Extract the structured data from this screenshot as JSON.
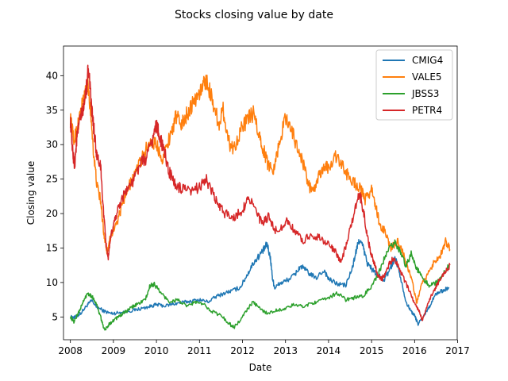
{
  "chart_data": {
    "type": "line",
    "title": "Stocks closing value by date",
    "xlabel": "Date",
    "ylabel": "Closing value",
    "xlim": [
      2007.84,
      2016.99
    ],
    "ylim": [
      1.7,
      44.3
    ],
    "x_ticks": [
      2008,
      2009,
      2010,
      2011,
      2012,
      2013,
      2014,
      2015,
      2016,
      2017
    ],
    "x_tick_labels": [
      "2008",
      "2009",
      "2010",
      "2011",
      "2012",
      "2013",
      "2014",
      "2015",
      "2016",
      "2017"
    ],
    "y_ticks": [
      5,
      10,
      15,
      20,
      25,
      30,
      35,
      40
    ],
    "y_tick_labels": [
      "5",
      "10",
      "15",
      "20",
      "25",
      "30",
      "35",
      "40"
    ],
    "grid": false,
    "legend_position": "top-right",
    "series": [
      {
        "name": "CMIG4",
        "color": "#1f77b4",
        "points": [
          [
            2008.0,
            5.0
          ],
          [
            2008.1,
            4.9
          ],
          [
            2008.25,
            5.6
          ],
          [
            2008.4,
            6.8
          ],
          [
            2008.5,
            7.4
          ],
          [
            2008.6,
            6.5
          ],
          [
            2008.8,
            5.8
          ],
          [
            2008.95,
            5.5
          ],
          [
            2009.1,
            5.6
          ],
          [
            2009.3,
            5.8
          ],
          [
            2009.5,
            6.0
          ],
          [
            2009.7,
            6.3
          ],
          [
            2009.9,
            6.6
          ],
          [
            2010.0,
            6.8
          ],
          [
            2010.2,
            6.6
          ],
          [
            2010.4,
            6.9
          ],
          [
            2010.6,
            7.1
          ],
          [
            2010.8,
            7.3
          ],
          [
            2011.0,
            7.5
          ],
          [
            2011.2,
            7.2
          ],
          [
            2011.4,
            8.0
          ],
          [
            2011.6,
            8.5
          ],
          [
            2011.8,
            8.9
          ],
          [
            2011.95,
            9.3
          ],
          [
            2012.1,
            11.0
          ],
          [
            2012.25,
            12.8
          ],
          [
            2012.4,
            14.0
          ],
          [
            2012.5,
            14.8
          ],
          [
            2012.57,
            15.6
          ],
          [
            2012.65,
            13.5
          ],
          [
            2012.7,
            10.5
          ],
          [
            2012.75,
            9.2
          ],
          [
            2012.85,
            9.8
          ],
          [
            2013.0,
            10.2
          ],
          [
            2013.2,
            11.0
          ],
          [
            2013.35,
            12.4
          ],
          [
            2013.5,
            11.6
          ],
          [
            2013.7,
            10.6
          ],
          [
            2013.9,
            11.8
          ],
          [
            2014.0,
            10.5
          ],
          [
            2014.2,
            9.8
          ],
          [
            2014.4,
            9.6
          ],
          [
            2014.55,
            12.0
          ],
          [
            2014.65,
            14.8
          ],
          [
            2014.72,
            16.2
          ],
          [
            2014.8,
            15.2
          ],
          [
            2014.9,
            12.8
          ],
          [
            2015.0,
            12.0
          ],
          [
            2015.15,
            11.0
          ],
          [
            2015.3,
            10.4
          ],
          [
            2015.45,
            12.2
          ],
          [
            2015.55,
            13.6
          ],
          [
            2015.65,
            11.5
          ],
          [
            2015.8,
            7.2
          ],
          [
            2015.9,
            6.0
          ],
          [
            2016.0,
            5.2
          ],
          [
            2016.08,
            4.0
          ],
          [
            2016.2,
            5.0
          ],
          [
            2016.35,
            6.6
          ],
          [
            2016.5,
            8.4
          ],
          [
            2016.65,
            8.8
          ],
          [
            2016.8,
            9.3
          ]
        ]
      },
      {
        "name": "VALE5",
        "color": "#ff7f0e",
        "points": [
          [
            2008.0,
            34.0
          ],
          [
            2008.08,
            30.5
          ],
          [
            2008.18,
            33.0
          ],
          [
            2008.3,
            36.5
          ],
          [
            2008.4,
            39.0
          ],
          [
            2008.48,
            34.0
          ],
          [
            2008.55,
            28.0
          ],
          [
            2008.62,
            24.0
          ],
          [
            2008.7,
            22.0
          ],
          [
            2008.78,
            17.0
          ],
          [
            2008.85,
            14.5
          ],
          [
            2008.95,
            17.0
          ],
          [
            2009.1,
            19.0
          ],
          [
            2009.25,
            22.0
          ],
          [
            2009.4,
            24.5
          ],
          [
            2009.55,
            26.5
          ],
          [
            2009.7,
            28.5
          ],
          [
            2009.85,
            30.5
          ],
          [
            2010.0,
            30.0
          ],
          [
            2010.15,
            28.0
          ],
          [
            2010.3,
            31.0
          ],
          [
            2010.45,
            34.0
          ],
          [
            2010.6,
            33.0
          ],
          [
            2010.75,
            35.0
          ],
          [
            2010.9,
            36.5
          ],
          [
            2011.05,
            38.0
          ],
          [
            2011.15,
            39.5
          ],
          [
            2011.3,
            36.5
          ],
          [
            2011.45,
            33.0
          ],
          [
            2011.55,
            35.0
          ],
          [
            2011.7,
            30.0
          ],
          [
            2011.8,
            29.5
          ],
          [
            2011.95,
            32.0
          ],
          [
            2012.1,
            33.5
          ],
          [
            2012.25,
            34.5
          ],
          [
            2012.4,
            31.0
          ],
          [
            2012.5,
            29.0
          ],
          [
            2012.6,
            27.0
          ],
          [
            2012.72,
            26.5
          ],
          [
            2012.85,
            30.0
          ],
          [
            2013.0,
            34.0
          ],
          [
            2013.1,
            33.0
          ],
          [
            2013.25,
            30.0
          ],
          [
            2013.4,
            27.5
          ],
          [
            2013.55,
            24.0
          ],
          [
            2013.65,
            23.0
          ],
          [
            2013.75,
            25.0
          ],
          [
            2013.9,
            27.0
          ],
          [
            2014.0,
            26.5
          ],
          [
            2014.15,
            28.5
          ],
          [
            2014.3,
            27.0
          ],
          [
            2014.45,
            25.5
          ],
          [
            2014.6,
            24.5
          ],
          [
            2014.75,
            23.5
          ],
          [
            2014.85,
            22.0
          ],
          [
            2015.0,
            23.5
          ],
          [
            2015.1,
            21.0
          ],
          [
            2015.2,
            18.0
          ],
          [
            2015.3,
            17.5
          ],
          [
            2015.45,
            15.0
          ],
          [
            2015.6,
            16.0
          ],
          [
            2015.72,
            14.5
          ],
          [
            2015.85,
            12.0
          ],
          [
            2015.95,
            10.0
          ],
          [
            2016.05,
            7.0
          ],
          [
            2016.15,
            9.5
          ],
          [
            2016.3,
            11.0
          ],
          [
            2016.45,
            13.0
          ],
          [
            2016.6,
            14.0
          ],
          [
            2016.72,
            16.0
          ],
          [
            2016.82,
            14.8
          ]
        ]
      },
      {
        "name": "JBSS3",
        "color": "#2ca02c",
        "points": [
          [
            2008.0,
            5.0
          ],
          [
            2008.08,
            4.3
          ],
          [
            2008.18,
            5.5
          ],
          [
            2008.3,
            7.2
          ],
          [
            2008.4,
            8.5
          ],
          [
            2008.5,
            8.0
          ],
          [
            2008.6,
            7.0
          ],
          [
            2008.7,
            5.0
          ],
          [
            2008.8,
            3.0
          ],
          [
            2008.9,
            4.0
          ],
          [
            2009.0,
            4.5
          ],
          [
            2009.15,
            5.2
          ],
          [
            2009.3,
            5.8
          ],
          [
            2009.45,
            6.5
          ],
          [
            2009.6,
            7.0
          ],
          [
            2009.75,
            7.6
          ],
          [
            2009.85,
            9.5
          ],
          [
            2009.95,
            9.8
          ],
          [
            2010.1,
            8.5
          ],
          [
            2010.3,
            7.2
          ],
          [
            2010.5,
            7.5
          ],
          [
            2010.7,
            6.5
          ],
          [
            2010.9,
            7.2
          ],
          [
            2011.1,
            6.8
          ],
          [
            2011.3,
            5.8
          ],
          [
            2011.5,
            5.2
          ],
          [
            2011.7,
            4.0
          ],
          [
            2011.8,
            3.5
          ],
          [
            2011.95,
            4.5
          ],
          [
            2012.1,
            6.0
          ],
          [
            2012.25,
            7.2
          ],
          [
            2012.4,
            6.2
          ],
          [
            2012.6,
            5.5
          ],
          [
            2012.8,
            6.0
          ],
          [
            2013.0,
            6.2
          ],
          [
            2013.2,
            6.8
          ],
          [
            2013.4,
            6.5
          ],
          [
            2013.6,
            7.0
          ],
          [
            2013.8,
            7.3
          ],
          [
            2014.0,
            7.8
          ],
          [
            2014.2,
            8.5
          ],
          [
            2014.4,
            7.5
          ],
          [
            2014.6,
            7.8
          ],
          [
            2014.8,
            8.0
          ],
          [
            2015.0,
            9.5
          ],
          [
            2015.15,
            11.0
          ],
          [
            2015.3,
            13.5
          ],
          [
            2015.45,
            15.2
          ],
          [
            2015.55,
            16.0
          ],
          [
            2015.65,
            14.5
          ],
          [
            2015.8,
            12.5
          ],
          [
            2015.92,
            14.2
          ],
          [
            2016.05,
            12.0
          ],
          [
            2016.2,
            10.5
          ],
          [
            2016.35,
            9.5
          ],
          [
            2016.5,
            10.0
          ],
          [
            2016.65,
            11.0
          ],
          [
            2016.8,
            12.5
          ]
        ]
      },
      {
        "name": "PETR4",
        "color": "#d62728",
        "points": [
          [
            2008.0,
            33.5
          ],
          [
            2008.05,
            29.0
          ],
          [
            2008.1,
            27.0
          ],
          [
            2008.15,
            31.0
          ],
          [
            2008.22,
            33.5
          ],
          [
            2008.3,
            35.0
          ],
          [
            2008.38,
            38.5
          ],
          [
            2008.42,
            41.5
          ],
          [
            2008.48,
            36.0
          ],
          [
            2008.55,
            32.0
          ],
          [
            2008.62,
            28.0
          ],
          [
            2008.7,
            27.0
          ],
          [
            2008.75,
            22.0
          ],
          [
            2008.82,
            16.0
          ],
          [
            2008.88,
            13.5
          ],
          [
            2008.95,
            17.0
          ],
          [
            2009.05,
            19.5
          ],
          [
            2009.15,
            21.5
          ],
          [
            2009.3,
            23.5
          ],
          [
            2009.45,
            24.5
          ],
          [
            2009.6,
            27.0
          ],
          [
            2009.75,
            28.0
          ],
          [
            2009.9,
            30.5
          ],
          [
            2010.0,
            33.0
          ],
          [
            2010.08,
            31.0
          ],
          [
            2010.2,
            28.5
          ],
          [
            2010.3,
            26.0
          ],
          [
            2010.45,
            24.0
          ],
          [
            2010.6,
            23.5
          ],
          [
            2010.8,
            23.0
          ],
          [
            2011.0,
            24.0
          ],
          [
            2011.15,
            25.0
          ],
          [
            2011.3,
            23.0
          ],
          [
            2011.45,
            21.0
          ],
          [
            2011.6,
            20.0
          ],
          [
            2011.8,
            19.5
          ],
          [
            2012.0,
            20.5
          ],
          [
            2012.15,
            22.5
          ],
          [
            2012.3,
            20.5
          ],
          [
            2012.45,
            18.5
          ],
          [
            2012.6,
            19.5
          ],
          [
            2012.75,
            17.5
          ],
          [
            2012.9,
            18.0
          ],
          [
            2013.05,
            19.0
          ],
          [
            2013.2,
            17.5
          ],
          [
            2013.4,
            16.0
          ],
          [
            2013.6,
            17.0
          ],
          [
            2013.8,
            16.5
          ],
          [
            2014.0,
            15.5
          ],
          [
            2014.15,
            14.5
          ],
          [
            2014.3,
            13.0
          ],
          [
            2014.45,
            16.5
          ],
          [
            2014.6,
            20.0
          ],
          [
            2014.72,
            23.0
          ],
          [
            2014.82,
            20.0
          ],
          [
            2014.92,
            16.0
          ],
          [
            2015.0,
            14.0
          ],
          [
            2015.08,
            12.5
          ],
          [
            2015.15,
            11.0
          ],
          [
            2015.25,
            10.5
          ],
          [
            2015.35,
            12.0
          ],
          [
            2015.5,
            13.5
          ],
          [
            2015.62,
            12.5
          ],
          [
            2015.75,
            10.5
          ],
          [
            2015.9,
            8.5
          ],
          [
            2016.0,
            7.0
          ],
          [
            2016.1,
            6.0
          ],
          [
            2016.18,
            4.5
          ],
          [
            2016.28,
            6.5
          ],
          [
            2016.42,
            8.5
          ],
          [
            2016.55,
            10.0
          ],
          [
            2016.7,
            11.5
          ],
          [
            2016.82,
            12.5
          ]
        ]
      }
    ]
  }
}
